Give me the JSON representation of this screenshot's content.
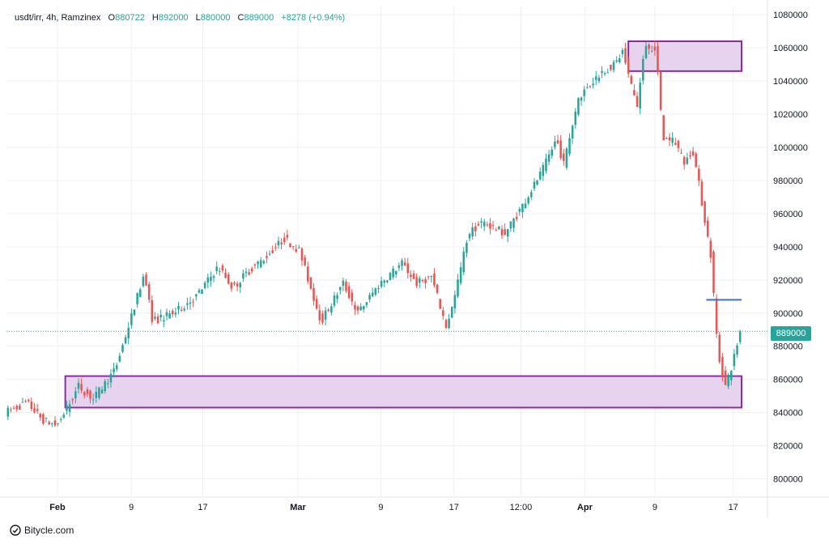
{
  "legend": {
    "symbol": "usdt/irr, 4h, Ramzinex",
    "open_label": "O",
    "open": "880722",
    "high_label": "H",
    "high": "892000",
    "low_label": "L",
    "low": "880000",
    "close_label": "C",
    "close": "889000",
    "change": "+8278 (+0.94%)"
  },
  "last_price_tag": "889000",
  "footer": {
    "brand": "Bitycle.com"
  },
  "colors": {
    "up": "#26a69a",
    "down": "#ef5350",
    "zone_fill": "#e8d3ee",
    "zone_stroke": "#8e2aa6",
    "level": "#3f6fd8"
  },
  "chart_data": {
    "type": "candlestick",
    "title": "",
    "xlabel": "",
    "ylabel": "",
    "ylim": [
      790000,
      1085000
    ],
    "y_ticks": [
      800000,
      820000,
      840000,
      860000,
      880000,
      900000,
      920000,
      940000,
      960000,
      980000,
      1000000,
      1020000,
      1040000,
      1060000,
      1080000
    ],
    "y_tick_labels": [
      "800000",
      "820000",
      "840000",
      "860000",
      "880000",
      "900000",
      "920000",
      "940000",
      "960000",
      "980000",
      "1000000",
      "1020000",
      "1040000",
      "1060000",
      "1080000"
    ],
    "x_ticks": [
      "Feb",
      "9",
      "17",
      "Mar",
      "9",
      "17",
      "12:00",
      "Apr",
      "9",
      "17"
    ],
    "x_tick_bold": [
      true,
      false,
      false,
      true,
      false,
      false,
      false,
      true,
      false,
      false
    ],
    "grid": true,
    "last_close": 889000,
    "price_path": [
      [
        0,
        840000
      ],
      [
        0.03,
        846000
      ],
      [
        0.05,
        836000
      ],
      [
        0.07,
        832000
      ],
      [
        0.09,
        847000
      ],
      [
        0.1,
        856000
      ],
      [
        0.12,
        848000
      ],
      [
        0.15,
        866000
      ],
      [
        0.17,
        895000
      ],
      [
        0.19,
        925000
      ],
      [
        0.2,
        895000
      ],
      [
        0.23,
        900000
      ],
      [
        0.26,
        910000
      ],
      [
        0.29,
        928000
      ],
      [
        0.31,
        915000
      ],
      [
        0.33,
        925000
      ],
      [
        0.35,
        932000
      ],
      [
        0.38,
        945000
      ],
      [
        0.4,
        938000
      ],
      [
        0.43,
        895000
      ],
      [
        0.46,
        918000
      ],
      [
        0.48,
        900000
      ],
      [
        0.51,
        918000
      ],
      [
        0.54,
        930000
      ],
      [
        0.56,
        918000
      ],
      [
        0.58,
        922000
      ],
      [
        0.6,
        892000
      ],
      [
        0.61,
        906000
      ],
      [
        0.63,
        948000
      ],
      [
        0.65,
        955000
      ],
      [
        0.68,
        948000
      ],
      [
        0.7,
        962000
      ],
      [
        0.73,
        985000
      ],
      [
        0.75,
        1005000
      ],
      [
        0.76,
        990000
      ],
      [
        0.78,
        1030000
      ],
      [
        0.8,
        1040000
      ],
      [
        0.81,
        1045000
      ],
      [
        0.83,
        1050000
      ],
      [
        0.84,
        1058000
      ],
      [
        0.85,
        1040000
      ],
      [
        0.86,
        1025000
      ],
      [
        0.87,
        1060000
      ],
      [
        0.885,
        1060000
      ],
      [
        0.895,
        1005000
      ],
      [
        0.91,
        1005000
      ],
      [
        0.925,
        990000
      ],
      [
        0.935,
        1000000
      ],
      [
        0.945,
        975000
      ],
      [
        0.96,
        935000
      ],
      [
        0.97,
        875000
      ],
      [
        0.98,
        856000
      ],
      [
        0.99,
        870000
      ],
      [
        1.0,
        889000
      ]
    ],
    "annotations": [
      {
        "type": "zone",
        "y1": 1046000,
        "y2": 1064000,
        "x1": 0.846,
        "x2": 1.0
      },
      {
        "type": "zone",
        "y1": 843000,
        "y2": 862000,
        "x1": 0.08,
        "x2": 1.0
      },
      {
        "type": "level",
        "y": 908000,
        "x1": 0.952,
        "x2": 1.0
      }
    ]
  }
}
